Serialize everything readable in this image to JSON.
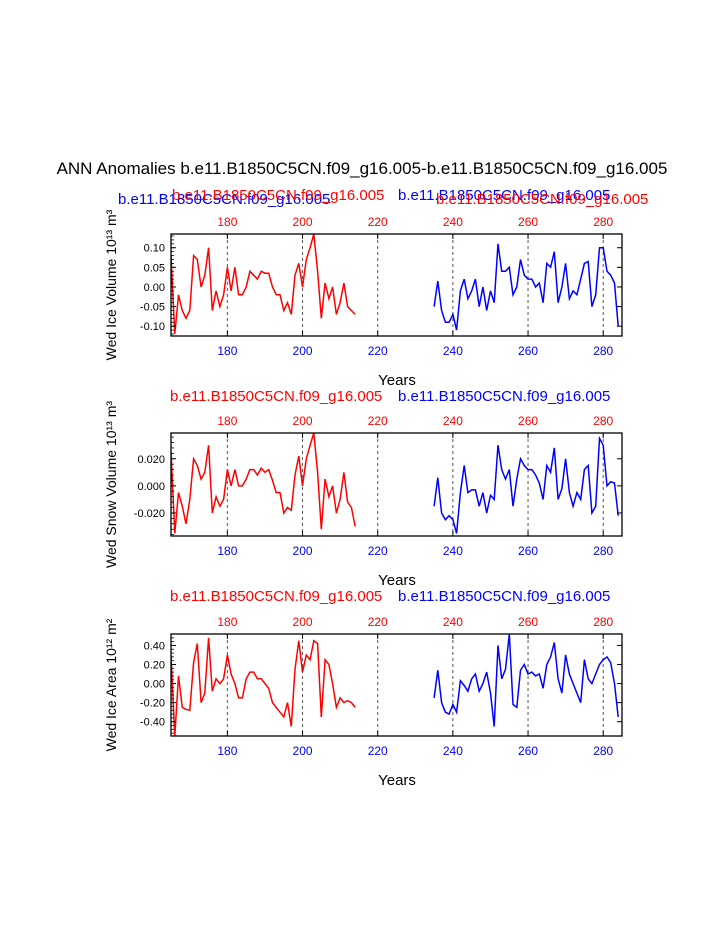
{
  "title": "ANN Anomalies b.e11.B1850C5CN.f09_g16.005-b.e11.B1850C5CN.f09_g16.005",
  "colors": {
    "red": "#ff0000",
    "blue": "#0000ff",
    "axis": "#000000",
    "grid": "#555555"
  },
  "case_red": "b.e11.B1850C5CN.f09_g16.005",
  "case_blue": "b.e11.B1850C5CN.f09_g16.005",
  "chart_data": [
    {
      "type": "line",
      "ylabel": "Wed Ice Volume 10^13 m^3",
      "xlabel": "Years",
      "xlim": [
        165,
        285
      ],
      "ylim": [
        -0.125,
        0.135
      ],
      "xticks": [
        180,
        200,
        220,
        240,
        260,
        280
      ],
      "yticks": [
        -0.1,
        -0.05,
        0.0,
        0.05,
        0.1
      ],
      "ytick_labels": [
        "-0.10",
        "-0.05",
        "0.00",
        "0.05",
        "0.10"
      ],
      "vlines": [
        180,
        200,
        220,
        240,
        260,
        280
      ],
      "series": [
        {
          "name": "b.e11.B1850C5CN.f09_g16.005",
          "color": "#ff0000",
          "x_start": 165,
          "values": [
            0.08,
            -0.12,
            -0.02,
            -0.06,
            -0.08,
            -0.06,
            0.08,
            0.07,
            0.0,
            0.03,
            0.1,
            -0.06,
            -0.01,
            -0.05,
            -0.02,
            0.05,
            -0.01,
            0.05,
            -0.02,
            -0.02,
            0.0,
            0.04,
            0.03,
            0.02,
            0.04,
            0.035,
            0.035,
            0.0,
            -0.02,
            -0.02,
            -0.06,
            -0.04,
            -0.07,
            0.03,
            0.06,
            0.0,
            0.07,
            0.1,
            0.135,
            0.04,
            -0.08,
            0.01,
            -0.03,
            0.0,
            -0.07,
            -0.04,
            0.01,
            -0.05,
            -0.06,
            -0.07
          ]
        },
        {
          "name": "b.e11.B1850C5CN.f09_g16.005",
          "color": "#0000ff",
          "x_start": 235,
          "values": [
            -0.05,
            0.015,
            -0.06,
            -0.09,
            -0.09,
            -0.07,
            -0.11,
            -0.01,
            0.02,
            -0.03,
            -0.01,
            0.02,
            -0.05,
            0.0,
            -0.06,
            -0.01,
            -0.04,
            0.11,
            0.04,
            0.04,
            0.05,
            -0.02,
            0.0,
            0.07,
            0.03,
            0.02,
            0.02,
            0.0,
            0.01,
            -0.04,
            0.06,
            0.05,
            0.09,
            -0.04,
            0.0,
            0.06,
            -0.03,
            -0.01,
            -0.02,
            0.02,
            0.06,
            0.065,
            -0.05,
            -0.02,
            0.1,
            0.1,
            0.04,
            0.03,
            0.01,
            -0.1
          ]
        }
      ]
    },
    {
      "type": "line",
      "ylabel": "Wed Snow Volume 10^13 m^3",
      "xlabel": "Years",
      "xlim": [
        165,
        285
      ],
      "ylim": [
        -0.037,
        0.039
      ],
      "xticks": [
        180,
        200,
        220,
        240,
        260,
        280
      ],
      "yticks": [
        -0.02,
        0.0,
        0.02
      ],
      "ytick_labels": [
        "-0.020",
        "0.000",
        "0.020"
      ],
      "vlines": [
        180,
        200,
        220,
        240,
        260,
        280
      ],
      "series": [
        {
          "name": "b.e11.B1850C5CN.f09_g16.005",
          "color": "#ff0000",
          "x_start": 165,
          "values": [
            0.025,
            -0.035,
            -0.005,
            -0.015,
            -0.028,
            -0.01,
            0.02,
            0.015,
            0.005,
            0.01,
            0.03,
            -0.02,
            -0.008,
            -0.015,
            -0.01,
            0.012,
            0.0,
            0.012,
            0.0,
            0.0,
            0.005,
            0.012,
            0.012,
            0.008,
            0.013,
            0.01,
            0.012,
            0.004,
            -0.005,
            -0.005,
            -0.02,
            -0.016,
            -0.018,
            0.008,
            0.022,
            0.0,
            0.02,
            0.03,
            0.039,
            0.01,
            -0.032,
            0.005,
            -0.008,
            0.0,
            -0.02,
            -0.01,
            0.01,
            -0.012,
            -0.016,
            -0.03
          ]
        },
        {
          "name": "b.e11.B1850C5CN.f09_g16.005",
          "color": "#0000ff",
          "x_start": 235,
          "values": [
            -0.015,
            0.006,
            -0.02,
            -0.025,
            -0.022,
            -0.025,
            -0.035,
            -0.005,
            0.015,
            -0.005,
            -0.003,
            -0.003,
            -0.015,
            -0.005,
            -0.02,
            -0.007,
            -0.01,
            0.03,
            0.012,
            0.005,
            0.012,
            -0.015,
            0.005,
            0.02,
            0.015,
            0.012,
            0.012,
            0.008,
            0.002,
            -0.01,
            0.015,
            0.01,
            0.028,
            -0.01,
            -0.002,
            0.02,
            -0.005,
            -0.015,
            -0.005,
            -0.01,
            0.012,
            0.015,
            -0.02,
            -0.015,
            0.035,
            0.03,
            0.0,
            0.003,
            0.002,
            -0.022
          ]
        }
      ]
    },
    {
      "type": "line",
      "ylabel": "Wed Ice Area 10^12 m^2",
      "xlabel": "Years",
      "xlim": [
        165,
        285
      ],
      "ylim": [
        -0.55,
        0.52
      ],
      "xticks": [
        180,
        200,
        220,
        240,
        260,
        280
      ],
      "yticks": [
        -0.4,
        -0.2,
        0.0,
        0.2,
        0.4
      ],
      "ytick_labels": [
        "-0.40",
        "-0.20",
        "0.00",
        "0.20",
        "0.40"
      ],
      "vlines": [
        180,
        200,
        220,
        240,
        260,
        280
      ],
      "series": [
        {
          "name": "b.e11.B1850C5CN.f09_g16.005",
          "color": "#ff0000",
          "x_start": 165,
          "values": [
            0.3,
            -0.55,
            0.08,
            -0.25,
            -0.27,
            -0.28,
            0.22,
            0.42,
            -0.2,
            -0.1,
            0.48,
            -0.08,
            0.05,
            0.0,
            0.05,
            0.3,
            0.1,
            0.0,
            -0.15,
            -0.15,
            0.05,
            0.12,
            0.12,
            0.05,
            0.05,
            0.0,
            -0.05,
            -0.2,
            -0.25,
            -0.3,
            -0.35,
            -0.2,
            -0.45,
            0.15,
            0.45,
            0.12,
            0.3,
            0.25,
            0.45,
            0.42,
            -0.35,
            0.25,
            0.2,
            0.0,
            -0.25,
            -0.15,
            -0.2,
            -0.18,
            -0.2,
            -0.25
          ]
        },
        {
          "name": "b.e11.B1850C5CN.f09_g16.005",
          "color": "#0000ff",
          "x_start": 235,
          "values": [
            -0.15,
            0.14,
            -0.2,
            -0.3,
            -0.32,
            -0.22,
            -0.3,
            0.03,
            -0.02,
            -0.08,
            0.05,
            0.1,
            -0.08,
            0.0,
            0.12,
            -0.1,
            -0.45,
            0.4,
            0.05,
            0.15,
            0.52,
            -0.22,
            -0.25,
            0.14,
            0.2,
            0.1,
            0.12,
            0.08,
            0.1,
            -0.05,
            0.2,
            0.28,
            0.43,
            0.05,
            -0.1,
            0.3,
            0.1,
            0.0,
            -0.1,
            -0.2,
            0.25,
            0.05,
            0.0,
            0.1,
            0.2,
            0.25,
            0.28,
            0.22,
            0.0,
            -0.35
          ]
        }
      ]
    }
  ]
}
